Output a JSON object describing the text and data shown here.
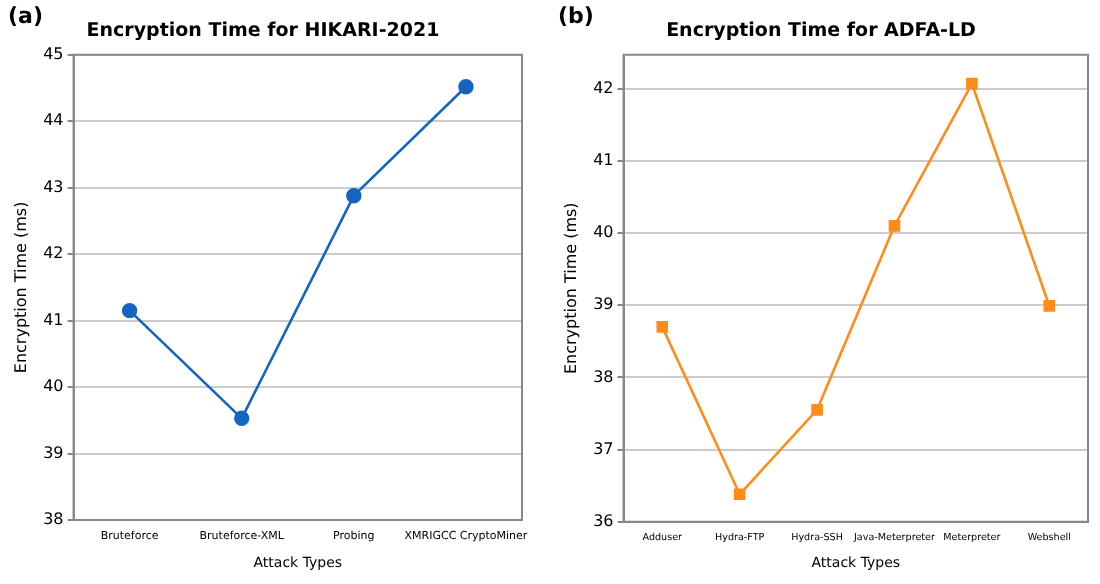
{
  "chart_data": [
    {
      "type": "line",
      "title": "Encryption Time for HIKARI-2021",
      "xlabel": "Attack Types",
      "ylabel": "Encryption Time (ms)",
      "annotations": [
        "(a)"
      ],
      "categories": [
        "Bruteforce",
        "Bruteforce-XML",
        "Probing",
        "XMRIGCC CryptoMiner"
      ],
      "series": [
        {
          "color": "#1565c0",
          "values": [
            41.15,
            39.53,
            42.88,
            44.52
          ]
        }
      ],
      "ylim": [
        38,
        45
      ],
      "yticks": [
        38,
        39,
        40,
        41,
        42,
        43,
        44,
        45
      ],
      "grid": "y",
      "marker": "circle",
      "legend": false
    },
    {
      "type": "line",
      "title": "Encryption Time for ADFA-LD",
      "xlabel": "Attack Types",
      "ylabel": "Encryption Time (ms)",
      "annotations": [
        "(b)"
      ],
      "categories": [
        "Adduser",
        "Hydra-FTP",
        "Hydra-SSH",
        "Java-Meterpreter",
        "Meterpreter",
        "Webshell"
      ],
      "series": [
        {
          "color": "#ff8c1a",
          "values": [
            38.7,
            36.38,
            37.55,
            40.1,
            42.07,
            38.99
          ]
        }
      ],
      "ylim": [
        36,
        42.47
      ],
      "yticks": [
        36,
        37,
        38,
        39,
        40,
        41,
        42
      ],
      "grid": "y",
      "marker": "square",
      "legend": false
    }
  ]
}
